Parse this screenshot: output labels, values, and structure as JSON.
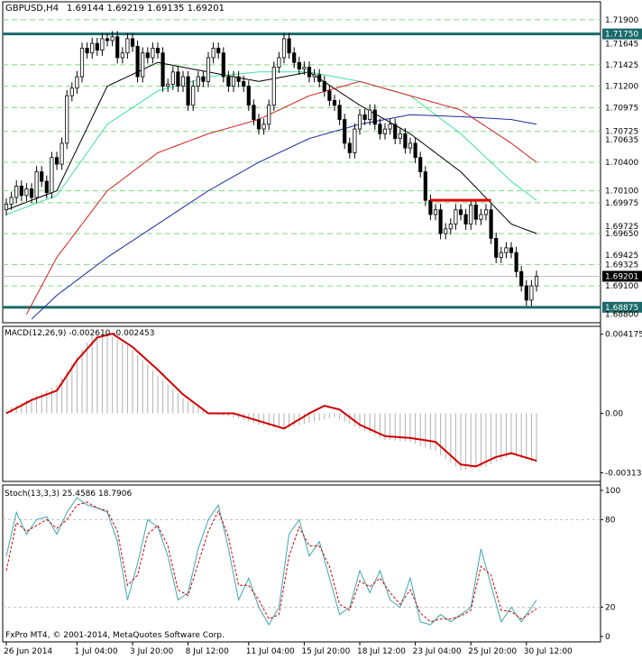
{
  "header": {
    "symbol": "GBPUSD,H4",
    "ohlc": "1.69144 1.69219 1.69135 1.69201"
  },
  "copyright": "FxPro MT4, © 2001-2014, MetaQuotes Software Corp.",
  "colors": {
    "background": "#ffffff",
    "grid": "#7fdc7f",
    "bull": "#000000",
    "bear": "#000000",
    "ma_fast": "#000000",
    "ma_mid": "#40e0a0",
    "ma_slow": "#d02020",
    "ma_long": "#1a2a9a",
    "hline_teal": "#1a6a6a",
    "resist_red": "#e00000",
    "macd_signal": "#d00000",
    "macd_hist": "#b0b0b0",
    "stoch_main": "#3aa8b0",
    "stoch_signal": "#d00000",
    "current_price_bg": "#000000"
  },
  "chart_data": [
    {
      "type": "candlestick",
      "panel": "price",
      "title": "GBPUSD,H4",
      "ylim": [
        1.6875,
        1.7205
      ],
      "y_tick_labels": [
        "1.71900",
        "1.71750",
        "1.71645",
        "1.71425",
        "1.71200",
        "1.70975",
        "1.70725",
        "1.70635",
        "1.70400",
        "1.70100",
        "1.69975",
        "1.69725",
        "1.69650",
        "1.69425",
        "1.69325",
        "1.69201",
        "1.69100",
        "1.68875",
        "1.68800"
      ],
      "y_ticks": [
        1.719,
        1.7175,
        1.71645,
        1.71425,
        1.712,
        1.70975,
        1.70725,
        1.70635,
        1.704,
        1.701,
        1.69975,
        1.69725,
        1.6965,
        1.69425,
        1.69325,
        1.69201,
        1.691,
        1.68875,
        1.688
      ],
      "dashed_levels": [
        1.719,
        1.71425,
        1.712,
        1.70975,
        1.70725,
        1.704,
        1.701,
        1.69975,
        1.6965,
        1.69325,
        1.691
      ],
      "teal_lines": [
        1.7175,
        1.68875
      ],
      "resistance_segment": {
        "from_index": 84,
        "to_index": 96,
        "price": 1.7
      },
      "current_price": 1.69201,
      "x_labels": [
        "26 Jun 2014",
        "1 Jul 04:00",
        "3 Jul 20:00",
        "8 Jul 12:00",
        "11 Jul 04:00",
        "15 Jul 20:00",
        "18 Jul 12:00",
        "23 Jul 04:00",
        "25 Jul 20:00",
        "30 Jul 12:00"
      ],
      "x_label_index": [
        0,
        14,
        25,
        36,
        48,
        59,
        70,
        81,
        92,
        103
      ],
      "close": [
        1.6996,
        1.7003,
        1.7015,
        1.7005,
        1.7012,
        1.7003,
        1.703,
        1.702,
        1.7008,
        1.7045,
        1.7038,
        1.706,
        1.711,
        1.7118,
        1.713,
        1.716,
        1.7155,
        1.7165,
        1.7158,
        1.717,
        1.7168,
        1.7172,
        1.715,
        1.7155,
        1.717,
        1.7162,
        1.713,
        1.7155,
        1.715,
        1.716,
        1.7155,
        1.712,
        1.7122,
        1.7135,
        1.712,
        1.713,
        1.71,
        1.712,
        1.713,
        1.7125,
        1.715,
        1.716,
        1.7155,
        1.713,
        1.712,
        1.713,
        1.7125,
        1.712,
        1.71,
        1.7085,
        1.7075,
        1.708,
        1.71,
        1.714,
        1.715,
        1.717,
        1.7155,
        1.7145,
        1.7138,
        1.714,
        1.713,
        1.7132,
        1.7125,
        1.7115,
        1.7105,
        1.71,
        1.7085,
        1.706,
        1.705,
        1.7075,
        1.709,
        1.7085,
        1.7095,
        1.708,
        1.707,
        1.7075,
        1.708,
        1.7065,
        1.707,
        1.7055,
        1.706,
        1.7045,
        1.703,
        1.7,
        1.6985,
        1.699,
        1.6965,
        1.697,
        1.6975,
        1.699,
        1.6985,
        1.6975,
        1.6995,
        1.698,
        1.6985,
        1.699,
        1.696,
        1.694,
        1.6945,
        1.695,
        1.6945,
        1.6925,
        1.691,
        1.6895,
        1.691,
        1.692
      ],
      "open": [
        1.699,
        1.6996,
        1.7003,
        1.7015,
        1.7005,
        1.7012,
        1.7003,
        1.703,
        1.702,
        1.7008,
        1.7045,
        1.7038,
        1.706,
        1.711,
        1.7118,
        1.713,
        1.716,
        1.7155,
        1.7165,
        1.7158,
        1.717,
        1.7168,
        1.7172,
        1.715,
        1.7155,
        1.717,
        1.7162,
        1.713,
        1.7155,
        1.715,
        1.716,
        1.7155,
        1.712,
        1.7122,
        1.7135,
        1.712,
        1.713,
        1.71,
        1.712,
        1.713,
        1.7125,
        1.715,
        1.716,
        1.7155,
        1.713,
        1.712,
        1.713,
        1.7125,
        1.712,
        1.71,
        1.7085,
        1.7075,
        1.708,
        1.71,
        1.714,
        1.715,
        1.717,
        1.7155,
        1.7145,
        1.7138,
        1.714,
        1.713,
        1.7132,
        1.7125,
        1.7115,
        1.7105,
        1.71,
        1.7085,
        1.706,
        1.705,
        1.7075,
        1.709,
        1.7085,
        1.7095,
        1.708,
        1.707,
        1.7075,
        1.708,
        1.7065,
        1.707,
        1.7055,
        1.706,
        1.7045,
        1.703,
        1.7,
        1.6985,
        1.699,
        1.6965,
        1.697,
        1.6975,
        1.699,
        1.6985,
        1.6975,
        1.6995,
        1.698,
        1.6985,
        1.699,
        1.696,
        1.694,
        1.6945,
        1.695,
        1.6945,
        1.6925,
        1.691,
        1.6895,
        1.691
      ],
      "moving_averages": [
        {
          "period": "fast",
          "anchors": [
            [
              0,
              1.699
            ],
            [
              10,
              1.701
            ],
            [
              20,
              1.712
            ],
            [
              30,
              1.7145
            ],
            [
              40,
              1.7135
            ],
            [
              50,
              1.7125
            ],
            [
              60,
              1.7135
            ],
            [
              70,
              1.71
            ],
            [
              80,
              1.707
            ],
            [
              90,
              1.703
            ],
            [
              100,
              1.6975
            ],
            [
              105,
              1.6965
            ]
          ]
        },
        {
          "period": "mid",
          "anchors": [
            [
              0,
              1.6985
            ],
            [
              10,
              1.7005
            ],
            [
              20,
              1.708
            ],
            [
              30,
              1.7115
            ],
            [
              40,
              1.713
            ],
            [
              50,
              1.7135
            ],
            [
              60,
              1.7135
            ],
            [
              70,
              1.7125
            ],
            [
              80,
              1.711
            ],
            [
              90,
              1.707
            ],
            [
              100,
              1.702
            ],
            [
              105,
              1.7
            ]
          ]
        },
        {
          "period": "slow",
          "anchors": [
            [
              4,
              1.688
            ],
            [
              10,
              1.694
            ],
            [
              20,
              1.701
            ],
            [
              30,
              1.705
            ],
            [
              40,
              1.707
            ],
            [
              50,
              1.7085
            ],
            [
              60,
              1.711
            ],
            [
              70,
              1.7125
            ],
            [
              80,
              1.711
            ],
            [
              90,
              1.7095
            ],
            [
              100,
              1.706
            ],
            [
              105,
              1.704
            ]
          ]
        },
        {
          "period": "long",
          "anchors": [
            [
              5,
              1.6875
            ],
            [
              10,
              1.69
            ],
            [
              20,
              1.694
            ],
            [
              30,
              1.6975
            ],
            [
              40,
              1.701
            ],
            [
              50,
              1.704
            ],
            [
              60,
              1.7065
            ],
            [
              70,
              1.708
            ],
            [
              80,
              1.709
            ],
            [
              90,
              1.7088
            ],
            [
              100,
              1.7085
            ],
            [
              105,
              1.708
            ]
          ]
        }
      ]
    },
    {
      "type": "line",
      "panel": "macd",
      "title": "MACD(12,26,9) -0.002610 -0.002453",
      "ylim": [
        -0.0034,
        0.0044
      ],
      "y_tick_labels": [
        "0.004175",
        "0.00",
        "-0.003138"
      ],
      "y_ticks": [
        0.004175,
        0.0,
        -0.003138
      ],
      "histogram_anchors": [
        [
          0,
          0.0002
        ],
        [
          5,
          0.0008
        ],
        [
          10,
          0.0015
        ],
        [
          14,
          0.003
        ],
        [
          17,
          0.0041
        ],
        [
          20,
          0.0042
        ],
        [
          24,
          0.0036
        ],
        [
          30,
          0.002
        ],
        [
          35,
          0.0008
        ],
        [
          40,
          0.0
        ],
        [
          45,
          -0.0002
        ],
        [
          50,
          -0.0006
        ],
        [
          55,
          -0.0008
        ],
        [
          60,
          -0.0005
        ],
        [
          65,
          -0.0002
        ],
        [
          70,
          -0.0008
        ],
        [
          75,
          -0.0014
        ],
        [
          80,
          -0.0015
        ],
        [
          85,
          -0.002
        ],
        [
          90,
          -0.003
        ],
        [
          95,
          -0.0028
        ],
        [
          100,
          -0.0022
        ],
        [
          105,
          -0.0026
        ]
      ],
      "signal_anchors": [
        [
          0,
          0.0
        ],
        [
          5,
          0.0007
        ],
        [
          10,
          0.0012
        ],
        [
          14,
          0.0028
        ],
        [
          18,
          0.004
        ],
        [
          21,
          0.0042
        ],
        [
          25,
          0.0035
        ],
        [
          30,
          0.0023
        ],
        [
          35,
          0.001
        ],
        [
          40,
          0.0
        ],
        [
          45,
          0.0
        ],
        [
          50,
          -0.0004
        ],
        [
          55,
          -0.0008
        ],
        [
          60,
          0.0
        ],
        [
          63,
          0.0004
        ],
        [
          66,
          0.0002
        ],
        [
          70,
          -0.0006
        ],
        [
          75,
          -0.0012
        ],
        [
          80,
          -0.0013
        ],
        [
          85,
          -0.0015
        ],
        [
          90,
          -0.0027
        ],
        [
          93,
          -0.0028
        ],
        [
          97,
          -0.0023
        ],
        [
          100,
          -0.0021
        ],
        [
          105,
          -0.0025
        ]
      ]
    },
    {
      "type": "line",
      "panel": "stochastic",
      "title": "Stoch(13,3,3) 25.4586 18.7906",
      "ylim": [
        0,
        100
      ],
      "y_tick_labels": [
        "100",
        "80",
        "20",
        "0"
      ],
      "y_ticks": [
        100,
        80,
        20,
        0
      ],
      "levels": [
        80,
        20
      ],
      "main_anchors": [
        [
          0,
          55
        ],
        [
          2,
          85
        ],
        [
          4,
          70
        ],
        [
          6,
          80
        ],
        [
          8,
          82
        ],
        [
          10,
          70
        ],
        [
          12,
          85
        ],
        [
          14,
          95
        ],
        [
          16,
          90
        ],
        [
          18,
          88
        ],
        [
          20,
          85
        ],
        [
          22,
          65
        ],
        [
          24,
          25
        ],
        [
          26,
          50
        ],
        [
          28,
          80
        ],
        [
          30,
          75
        ],
        [
          32,
          55
        ],
        [
          34,
          25
        ],
        [
          36,
          30
        ],
        [
          38,
          60
        ],
        [
          40,
          80
        ],
        [
          42,
          90
        ],
        [
          44,
          60
        ],
        [
          46,
          25
        ],
        [
          48,
          40
        ],
        [
          50,
          20
        ],
        [
          52,
          8
        ],
        [
          54,
          20
        ],
        [
          56,
          70
        ],
        [
          58,
          80
        ],
        [
          60,
          55
        ],
        [
          62,
          65
        ],
        [
          64,
          40
        ],
        [
          66,
          15
        ],
        [
          68,
          20
        ],
        [
          70,
          45
        ],
        [
          72,
          30
        ],
        [
          74,
          45
        ],
        [
          76,
          25
        ],
        [
          78,
          20
        ],
        [
          80,
          40
        ],
        [
          82,
          10
        ],
        [
          84,
          8
        ],
        [
          86,
          15
        ],
        [
          88,
          10
        ],
        [
          90,
          15
        ],
        [
          92,
          20
        ],
        [
          94,
          60
        ],
        [
          96,
          35
        ],
        [
          98,
          10
        ],
        [
          100,
          20
        ],
        [
          102,
          10
        ],
        [
          105,
          25
        ]
      ],
      "signal_anchors": [
        [
          0,
          45
        ],
        [
          2,
          78
        ],
        [
          4,
          72
        ],
        [
          6,
          76
        ],
        [
          8,
          80
        ],
        [
          10,
          74
        ],
        [
          12,
          80
        ],
        [
          14,
          90
        ],
        [
          16,
          92
        ],
        [
          18,
          88
        ],
        [
          20,
          86
        ],
        [
          22,
          72
        ],
        [
          24,
          35
        ],
        [
          26,
          42
        ],
        [
          28,
          70
        ],
        [
          30,
          76
        ],
        [
          32,
          62
        ],
        [
          34,
          32
        ],
        [
          36,
          28
        ],
        [
          38,
          50
        ],
        [
          40,
          72
        ],
        [
          42,
          86
        ],
        [
          44,
          68
        ],
        [
          46,
          35
        ],
        [
          48,
          35
        ],
        [
          50,
          25
        ],
        [
          52,
          12
        ],
        [
          54,
          15
        ],
        [
          56,
          55
        ],
        [
          58,
          75
        ],
        [
          60,
          62
        ],
        [
          62,
          62
        ],
        [
          64,
          48
        ],
        [
          66,
          22
        ],
        [
          68,
          18
        ],
        [
          70,
          38
        ],
        [
          72,
          34
        ],
        [
          74,
          40
        ],
        [
          76,
          30
        ],
        [
          78,
          22
        ],
        [
          80,
          32
        ],
        [
          82,
          16
        ],
        [
          84,
          10
        ],
        [
          86,
          12
        ],
        [
          88,
          12
        ],
        [
          90,
          14
        ],
        [
          92,
          18
        ],
        [
          94,
          48
        ],
        [
          96,
          42
        ],
        [
          98,
          18
        ],
        [
          100,
          17
        ],
        [
          102,
          12
        ],
        [
          105,
          19
        ]
      ]
    }
  ]
}
